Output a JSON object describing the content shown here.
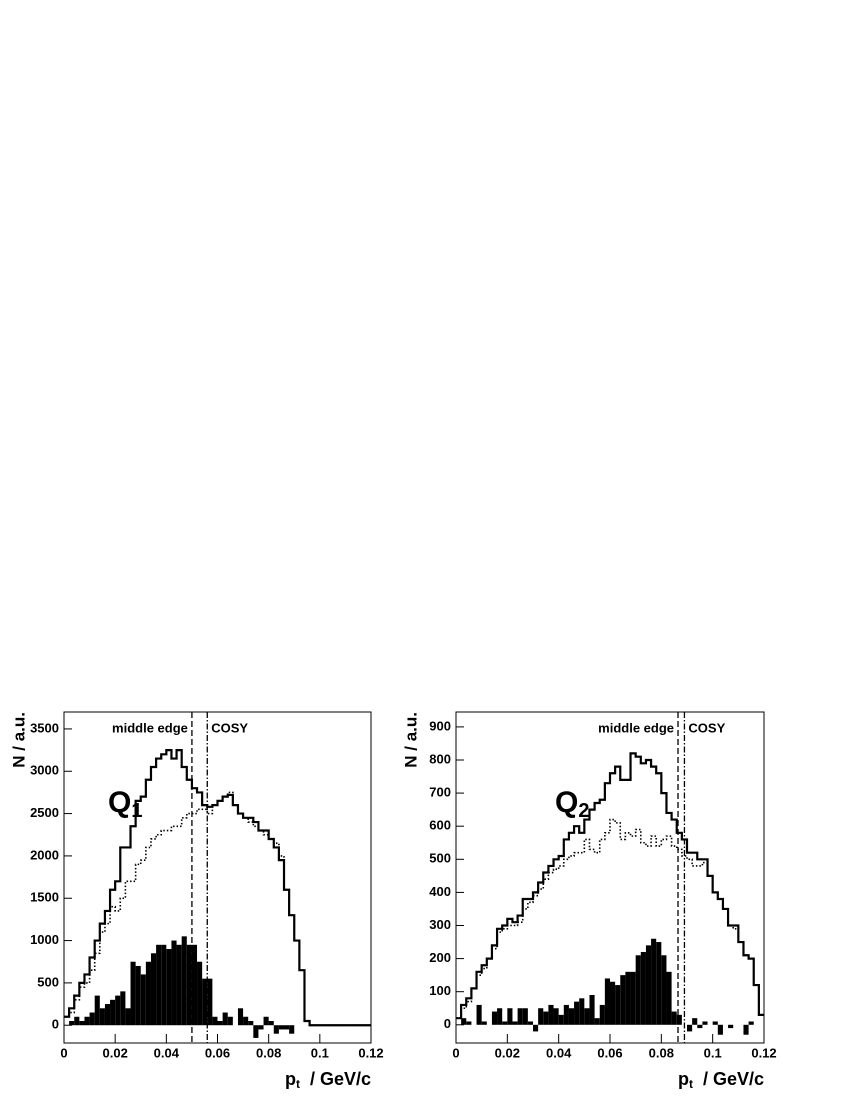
{
  "chart_data": [
    {
      "type": "histogram",
      "ylabel": "N  /  a.u.",
      "xlabel": "p",
      "xlabel_sub": "t",
      "xlabel_unit": "/  GeV/c",
      "annotation": "Q",
      "annotation_sub": "1",
      "bins": [
        0,
        0.002,
        0.004,
        0.006,
        0.008,
        0.01,
        0.012,
        0.014,
        0.016,
        0.018,
        0.02,
        0.022,
        0.024,
        0.026,
        0.028,
        0.03,
        0.032,
        0.034,
        0.036,
        0.038,
        0.04,
        0.042,
        0.044,
        0.046,
        0.048,
        0.05,
        0.052,
        0.054,
        0.056,
        0.058,
        0.06,
        0.062,
        0.064,
        0.066,
        0.068,
        0.07,
        0.072,
        0.074,
        0.076,
        0.078,
        0.08,
        0.082,
        0.084,
        0.086,
        0.088,
        0.09,
        0.092,
        0.094,
        0.096,
        0.098,
        0.1,
        0.102,
        0.104,
        0.106,
        0.108,
        0.11,
        0.112,
        0.114,
        0.116,
        0.118,
        0.12
      ],
      "series": [
        {
          "style": "solid",
          "color": "#000000",
          "values": [
            100,
            200,
            350,
            500,
            600,
            800,
            1000,
            1200,
            1350,
            1600,
            1700,
            2100,
            2100,
            2350,
            2650,
            2700,
            2900,
            3050,
            3150,
            3200,
            3250,
            3150,
            3250,
            3050,
            2900,
            2800,
            2750,
            2600,
            2580,
            2600,
            2650,
            2700,
            2720,
            2600,
            2500,
            2450,
            2450,
            2400,
            2300,
            2300,
            2200,
            2100,
            1950,
            1600,
            1300,
            1000,
            650,
            50,
            0,
            0,
            0,
            0,
            0,
            0,
            0,
            0,
            0,
            0,
            0,
            0
          ]
        },
        {
          "style": "dotted",
          "color": "#000000",
          "values": [
            100,
            150,
            300,
            450,
            500,
            650,
            850,
            1100,
            1200,
            1400,
            1350,
            1500,
            1700,
            1700,
            1900,
            1950,
            2100,
            2200,
            2250,
            2300,
            2300,
            2350,
            2350,
            2450,
            2500,
            2500,
            2550,
            2550,
            2500,
            2600,
            2650,
            2700,
            2750,
            2600,
            2500,
            2450,
            2400,
            2350,
            2300,
            2250,
            2200,
            2150,
            2000,
            1600,
            1300,
            1000,
            650,
            50,
            0,
            0,
            0,
            0,
            0,
            0,
            0,
            0,
            0,
            0,
            0,
            0
          ]
        },
        {
          "style": "filled",
          "color": "#000000",
          "values": [
            0,
            50,
            100,
            50,
            100,
            150,
            350,
            200,
            250,
            300,
            350,
            400,
            200,
            750,
            700,
            600,
            750,
            850,
            950,
            950,
            900,
            1000,
            950,
            1050,
            950,
            950,
            750,
            550,
            550,
            100,
            50,
            150,
            100,
            0,
            200,
            100,
            50,
            -150,
            -50,
            100,
            50,
            -100,
            -50,
            -50,
            -100,
            0,
            0,
            0,
            0,
            0,
            0,
            0,
            0,
            0,
            0,
            0,
            0,
            0,
            0,
            0
          ]
        }
      ],
      "vlines": [
        {
          "x": 0.05,
          "style": "dashed",
          "label": "middle edge"
        },
        {
          "x": 0.056,
          "style": "dashdot",
          "label": "COSY"
        }
      ],
      "xlim": [
        0,
        0.12
      ],
      "xticks": [
        0,
        0.02,
        0.04,
        0.06,
        0.08,
        0.1,
        0.12
      ],
      "ylim": [
        -210,
        3700
      ],
      "yticks": [
        0,
        500,
        1000,
        1500,
        2000,
        2500,
        3000,
        3500
      ]
    },
    {
      "type": "histogram",
      "ylabel": "N  /  a.u.",
      "xlabel": "p",
      "xlabel_sub": "t",
      "xlabel_unit": "/  GeV/c",
      "annotation": "Q",
      "annotation_sub": "2",
      "bins": [
        0,
        0.002,
        0.004,
        0.006,
        0.008,
        0.01,
        0.012,
        0.014,
        0.016,
        0.018,
        0.02,
        0.022,
        0.024,
        0.026,
        0.028,
        0.03,
        0.032,
        0.034,
        0.036,
        0.038,
        0.04,
        0.042,
        0.044,
        0.046,
        0.048,
        0.05,
        0.052,
        0.054,
        0.056,
        0.058,
        0.06,
        0.062,
        0.064,
        0.066,
        0.068,
        0.07,
        0.072,
        0.074,
        0.076,
        0.078,
        0.08,
        0.082,
        0.084,
        0.086,
        0.088,
        0.09,
        0.092,
        0.094,
        0.096,
        0.098,
        0.1,
        0.102,
        0.104,
        0.106,
        0.108,
        0.11,
        0.112,
        0.114,
        0.116,
        0.118,
        0.12
      ],
      "series": [
        {
          "style": "solid",
          "color": "#000000",
          "values": [
            20,
            60,
            80,
            110,
            160,
            180,
            200,
            240,
            290,
            300,
            320,
            310,
            330,
            380,
            380,
            400,
            430,
            460,
            480,
            500,
            510,
            560,
            580,
            600,
            580,
            620,
            650,
            670,
            680,
            730,
            760,
            780,
            740,
            740,
            820,
            810,
            790,
            800,
            780,
            760,
            700,
            640,
            620,
            580,
            560,
            520,
            520,
            500,
            500,
            450,
            400,
            380,
            350,
            300,
            300,
            250,
            210,
            200,
            120,
            30
          ]
        },
        {
          "style": "dotted",
          "color": "#000000",
          "values": [
            20,
            50,
            70,
            110,
            150,
            170,
            200,
            230,
            280,
            290,
            300,
            300,
            310,
            350,
            370,
            390,
            410,
            440,
            460,
            470,
            480,
            500,
            510,
            520,
            520,
            560,
            530,
            520,
            560,
            580,
            620,
            610,
            560,
            580,
            570,
            590,
            550,
            540,
            570,
            540,
            560,
            570,
            540,
            530,
            510,
            500,
            480,
            480,
            490,
            450,
            400,
            380,
            350,
            300,
            290,
            250,
            210,
            200,
            120,
            30
          ]
        },
        {
          "style": "filled",
          "color": "#000000",
          "values": [
            0,
            20,
            10,
            0,
            60,
            10,
            0,
            40,
            50,
            10,
            50,
            10,
            50,
            50,
            10,
            -20,
            50,
            40,
            60,
            50,
            30,
            60,
            50,
            70,
            80,
            50,
            90,
            20,
            60,
            140,
            130,
            120,
            150,
            160,
            160,
            210,
            220,
            240,
            260,
            250,
            210,
            160,
            40,
            30,
            0,
            -20,
            20,
            -10,
            10,
            0,
            10,
            -30,
            0,
            -10,
            0,
            0,
            -30,
            10,
            0,
            0
          ]
        }
      ],
      "vlines": [
        {
          "x": 0.0865,
          "style": "dashed",
          "label": "middle edge"
        },
        {
          "x": 0.089,
          "style": "dashdot",
          "label": "COSY"
        }
      ],
      "xlim": [
        0,
        0.12
      ],
      "xticks": [
        0,
        0.02,
        0.04,
        0.06,
        0.08,
        0.1,
        0.12
      ],
      "ylim": [
        -55,
        945
      ],
      "yticks": [
        0,
        100,
        200,
        300,
        400,
        500,
        600,
        700,
        800,
        900
      ]
    }
  ]
}
